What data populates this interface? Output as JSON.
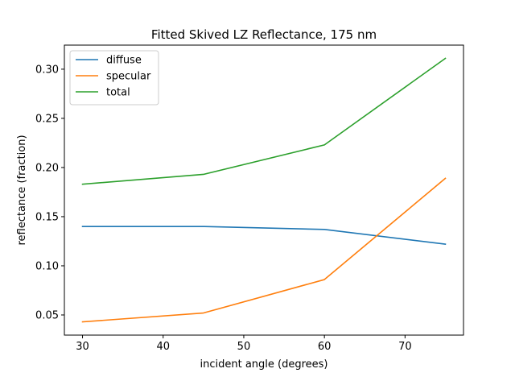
{
  "chart_data": {
    "type": "line",
    "title": "Fitted Skived LZ Reflectance, 175 nm",
    "xlabel": "incident angle (degrees)",
    "ylabel": "reflectance (fraction)",
    "x": [
      30,
      45,
      60,
      75
    ],
    "xlim": [
      27.75,
      77.25
    ],
    "ylim": [
      0.0295,
      0.3245
    ],
    "xticks": [
      30,
      40,
      50,
      60,
      70
    ],
    "xtick_labels": [
      "30",
      "40",
      "50",
      "60",
      "70"
    ],
    "yticks": [
      0.05,
      0.1,
      0.15,
      0.2,
      0.25,
      0.3
    ],
    "ytick_labels": [
      "0.05",
      "0.10",
      "0.15",
      "0.20",
      "0.25",
      "0.30"
    ],
    "grid": false,
    "legend_position": "top-left",
    "series": [
      {
        "name": "diffuse",
        "color": "#1f77b4",
        "values": [
          0.14,
          0.14,
          0.137,
          0.122
        ]
      },
      {
        "name": "specular",
        "color": "#ff7f0e",
        "values": [
          0.043,
          0.052,
          0.086,
          0.189
        ]
      },
      {
        "name": "total",
        "color": "#2ca02c",
        "values": [
          0.183,
          0.193,
          0.223,
          0.311
        ]
      }
    ]
  }
}
